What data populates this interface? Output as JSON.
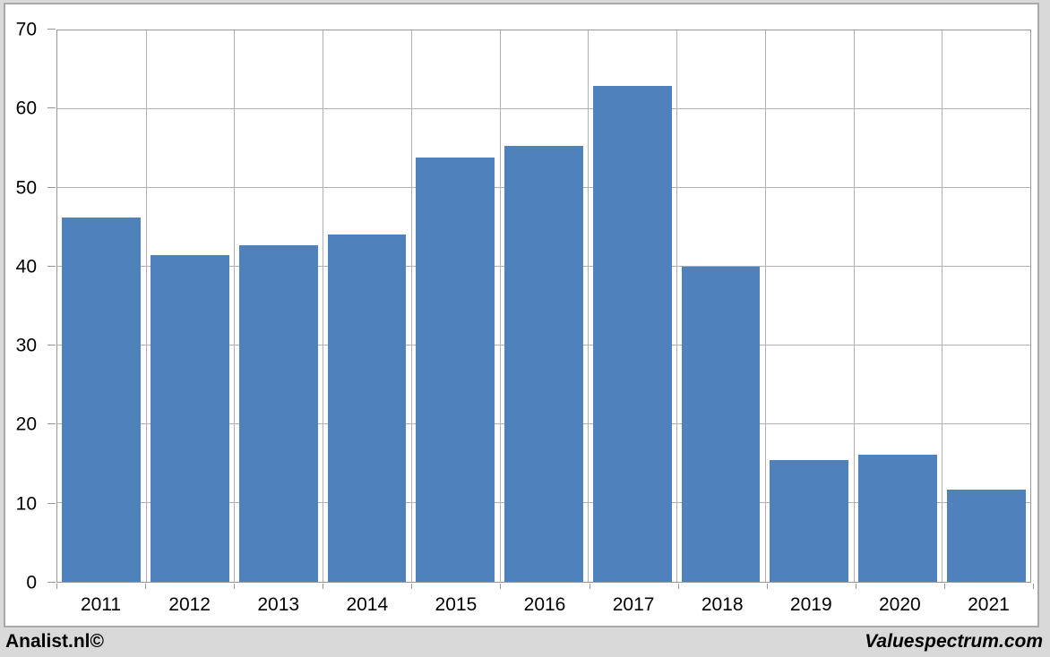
{
  "chart_data": {
    "type": "bar",
    "title": "",
    "xlabel": "",
    "ylabel": "",
    "categories": [
      "2011",
      "2012",
      "2013",
      "2014",
      "2015",
      "2016",
      "2017",
      "2018",
      "2019",
      "2020",
      "2021"
    ],
    "values": [
      46.2,
      41.5,
      42.7,
      44.1,
      53.9,
      55.3,
      63,
      40,
      15.4,
      16.1,
      11.7
    ],
    "ylim": [
      0,
      70
    ],
    "yticks": [
      0,
      10,
      20,
      30,
      40,
      50,
      60,
      70
    ],
    "grid": true,
    "legend": "none",
    "bar_color": "#4f81bd"
  },
  "footer": {
    "left_text": "Analist.nl©",
    "right_text": "Valuespectrum.com"
  },
  "colors": {
    "bar": "#4f81bd",
    "page_background": "#d9d9d9",
    "panel_background": "#ffffff",
    "panel_border": "#a9a9a9",
    "plot_border": "#979797",
    "gridline": "#b0b0b0",
    "text": "#000000"
  }
}
